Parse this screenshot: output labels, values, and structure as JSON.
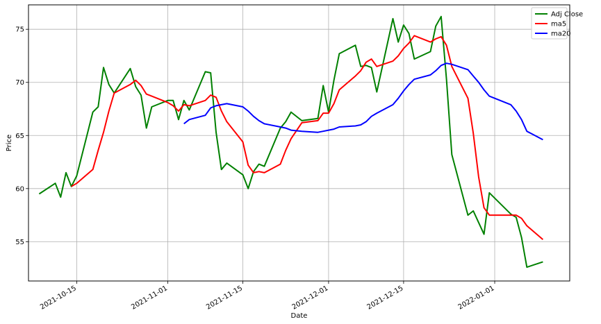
{
  "chart_data": {
    "type": "line",
    "xlabel": "Date",
    "ylabel": "Price",
    "xlim": [
      "2021-10-06",
      "2022-01-15"
    ],
    "ylim": [
      51.3,
      77.3
    ],
    "x_ticks": [
      {
        "date": "2021-10-15",
        "label": "2021-10-15"
      },
      {
        "date": "2021-11-01",
        "label": "2021-11-01"
      },
      {
        "date": "2021-11-15",
        "label": "2021-11-15"
      },
      {
        "date": "2021-12-01",
        "label": "2021-12-01"
      },
      {
        "date": "2021-12-15",
        "label": "2021-12-15"
      },
      {
        "date": "2022-01-01",
        "label": "2022-01-01"
      }
    ],
    "y_ticks": [
      55,
      60,
      65,
      70,
      75
    ],
    "grid": true,
    "legend_position": "top-right",
    "series": [
      {
        "name": "Adj Close",
        "color": "#008000",
        "points": [
          [
            "2021-10-08",
            59.5
          ],
          [
            "2021-10-11",
            60.5
          ],
          [
            "2021-10-12",
            59.2
          ],
          [
            "2021-10-13",
            61.5
          ],
          [
            "2021-10-14",
            60.2
          ],
          [
            "2021-10-15",
            61.2
          ],
          [
            "2021-10-18",
            67.2
          ],
          [
            "2021-10-19",
            67.7
          ],
          [
            "2021-10-20",
            71.4
          ],
          [
            "2021-10-21",
            69.8
          ],
          [
            "2021-10-22",
            69.0
          ],
          [
            "2021-10-25",
            71.3
          ],
          [
            "2021-10-26",
            69.6
          ],
          [
            "2021-10-27",
            68.8
          ],
          [
            "2021-10-28",
            65.7
          ],
          [
            "2021-10-29",
            67.7
          ],
          [
            "2021-11-01",
            68.3
          ],
          [
            "2021-11-02",
            68.3
          ],
          [
            "2021-11-03",
            66.5
          ],
          [
            "2021-11-04",
            68.3
          ],
          [
            "2021-11-05",
            67.4
          ],
          [
            "2021-11-08",
            71.0
          ],
          [
            "2021-11-09",
            70.9
          ],
          [
            "2021-11-10",
            65.3
          ],
          [
            "2021-11-11",
            61.8
          ],
          [
            "2021-11-12",
            62.4
          ],
          [
            "2021-11-15",
            61.3
          ],
          [
            "2021-11-16",
            60.0
          ],
          [
            "2021-11-17",
            61.6
          ],
          [
            "2021-11-18",
            62.3
          ],
          [
            "2021-11-19",
            62.1
          ],
          [
            "2021-11-22",
            65.7
          ],
          [
            "2021-11-23",
            66.3
          ],
          [
            "2021-11-24",
            67.2
          ],
          [
            "2021-11-26",
            66.4
          ],
          [
            "2021-11-29",
            66.6
          ],
          [
            "2021-11-30",
            69.7
          ],
          [
            "2021-12-01",
            67.2
          ],
          [
            "2021-12-02",
            70.2
          ],
          [
            "2021-12-03",
            72.7
          ],
          [
            "2021-12-06",
            73.5
          ],
          [
            "2021-12-07",
            71.5
          ],
          [
            "2021-12-08",
            71.6
          ],
          [
            "2021-12-09",
            71.4
          ],
          [
            "2021-12-10",
            69.1
          ],
          [
            "2021-12-13",
            76.0
          ],
          [
            "2021-12-14",
            73.8
          ],
          [
            "2021-12-15",
            75.4
          ],
          [
            "2021-12-16",
            74.6
          ],
          [
            "2021-12-17",
            72.2
          ],
          [
            "2021-12-20",
            72.9
          ],
          [
            "2021-12-21",
            75.3
          ],
          [
            "2021-12-22",
            76.2
          ],
          [
            "2021-12-23",
            70.3
          ],
          [
            "2021-12-24",
            63.2
          ],
          [
            "2021-12-27",
            57.5
          ],
          [
            "2021-12-28",
            57.9
          ],
          [
            "2021-12-29",
            56.8
          ],
          [
            "2021-12-30",
            55.7
          ],
          [
            "2021-12-31",
            59.6
          ],
          [
            "2022-01-04",
            57.6
          ],
          [
            "2022-01-05",
            57.3
          ],
          [
            "2022-01-06",
            55.4
          ],
          [
            "2022-01-07",
            52.6
          ],
          [
            "2022-01-10",
            53.1
          ]
        ]
      },
      {
        "name": "ma5",
        "color": "#ff0000",
        "points": [
          [
            "2021-10-14",
            60.2
          ],
          [
            "2021-10-15",
            60.5
          ],
          [
            "2021-10-18",
            61.8
          ],
          [
            "2021-10-19",
            63.6
          ],
          [
            "2021-10-20",
            65.3
          ],
          [
            "2021-10-21",
            67.3
          ],
          [
            "2021-10-22",
            69.0
          ],
          [
            "2021-10-25",
            69.8
          ],
          [
            "2021-10-26",
            70.2
          ],
          [
            "2021-10-27",
            69.7
          ],
          [
            "2021-10-28",
            68.9
          ],
          [
            "2021-10-29",
            68.7
          ],
          [
            "2021-11-01",
            68.1
          ],
          [
            "2021-11-02",
            67.8
          ],
          [
            "2021-11-03",
            67.3
          ],
          [
            "2021-11-04",
            67.9
          ],
          [
            "2021-11-05",
            67.8
          ],
          [
            "2021-11-08",
            68.3
          ],
          [
            "2021-11-09",
            68.8
          ],
          [
            "2021-11-10",
            68.6
          ],
          [
            "2021-11-11",
            67.3
          ],
          [
            "2021-11-12",
            66.3
          ],
          [
            "2021-11-15",
            64.4
          ],
          [
            "2021-11-16",
            62.2
          ],
          [
            "2021-11-17",
            61.5
          ],
          [
            "2021-11-18",
            61.6
          ],
          [
            "2021-11-19",
            61.5
          ],
          [
            "2021-11-22",
            62.3
          ],
          [
            "2021-11-23",
            63.6
          ],
          [
            "2021-11-24",
            64.7
          ],
          [
            "2021-11-26",
            66.2
          ],
          [
            "2021-11-29",
            66.4
          ],
          [
            "2021-11-30",
            67.1
          ],
          [
            "2021-12-01",
            67.1
          ],
          [
            "2021-12-02",
            68.0
          ],
          [
            "2021-12-03",
            69.3
          ],
          [
            "2021-12-06",
            70.6
          ],
          [
            "2021-12-07",
            71.1
          ],
          [
            "2021-12-08",
            71.9
          ],
          [
            "2021-12-09",
            72.2
          ],
          [
            "2021-12-10",
            71.5
          ],
          [
            "2021-12-13",
            72.0
          ],
          [
            "2021-12-14",
            72.5
          ],
          [
            "2021-12-15",
            73.2
          ],
          [
            "2021-12-16",
            73.7
          ],
          [
            "2021-12-17",
            74.4
          ],
          [
            "2021-12-20",
            73.8
          ],
          [
            "2021-12-21",
            74.1
          ],
          [
            "2021-12-22",
            74.3
          ],
          [
            "2021-12-23",
            73.5
          ],
          [
            "2021-12-24",
            71.5
          ],
          [
            "2021-12-27",
            68.5
          ],
          [
            "2021-12-28",
            65.2
          ],
          [
            "2021-12-29",
            61.1
          ],
          [
            "2021-12-30",
            58.2
          ],
          [
            "2021-12-31",
            57.5
          ],
          [
            "2022-01-04",
            57.5
          ],
          [
            "2022-01-05",
            57.5
          ],
          [
            "2022-01-06",
            57.2
          ],
          [
            "2022-01-07",
            56.5
          ],
          [
            "2022-01-10",
            55.2
          ]
        ]
      },
      {
        "name": "ma20",
        "color": "#0000ff",
        "points": [
          [
            "2021-11-04",
            66.1
          ],
          [
            "2021-11-05",
            66.5
          ],
          [
            "2021-11-08",
            66.9
          ],
          [
            "2021-11-09",
            67.6
          ],
          [
            "2021-11-10",
            67.8
          ],
          [
            "2021-11-11",
            67.9
          ],
          [
            "2021-11-12",
            68.0
          ],
          [
            "2021-11-15",
            67.7
          ],
          [
            "2021-11-16",
            67.3
          ],
          [
            "2021-11-17",
            66.8
          ],
          [
            "2021-11-18",
            66.4
          ],
          [
            "2021-11-19",
            66.1
          ],
          [
            "2021-11-22",
            65.8
          ],
          [
            "2021-11-23",
            65.7
          ],
          [
            "2021-11-24",
            65.5
          ],
          [
            "2021-11-26",
            65.4
          ],
          [
            "2021-11-29",
            65.3
          ],
          [
            "2021-11-30",
            65.4
          ],
          [
            "2021-12-01",
            65.5
          ],
          [
            "2021-12-02",
            65.6
          ],
          [
            "2021-12-03",
            65.8
          ],
          [
            "2021-12-06",
            65.9
          ],
          [
            "2021-12-07",
            66.0
          ],
          [
            "2021-12-08",
            66.3
          ],
          [
            "2021-12-09",
            66.8
          ],
          [
            "2021-12-10",
            67.1
          ],
          [
            "2021-12-13",
            67.9
          ],
          [
            "2021-12-14",
            68.5
          ],
          [
            "2021-12-15",
            69.2
          ],
          [
            "2021-12-16",
            69.8
          ],
          [
            "2021-12-17",
            70.3
          ],
          [
            "2021-12-20",
            70.7
          ],
          [
            "2021-12-21",
            71.1
          ],
          [
            "2021-12-22",
            71.6
          ],
          [
            "2021-12-23",
            71.8
          ],
          [
            "2021-12-24",
            71.7
          ],
          [
            "2021-12-27",
            71.2
          ],
          [
            "2021-12-28",
            70.6
          ],
          [
            "2021-12-29",
            70.0
          ],
          [
            "2021-12-30",
            69.3
          ],
          [
            "2021-12-31",
            68.7
          ],
          [
            "2022-01-04",
            67.9
          ],
          [
            "2022-01-05",
            67.3
          ],
          [
            "2022-01-06",
            66.5
          ],
          [
            "2022-01-07",
            65.4
          ],
          [
            "2022-01-10",
            64.6
          ]
        ]
      }
    ]
  }
}
